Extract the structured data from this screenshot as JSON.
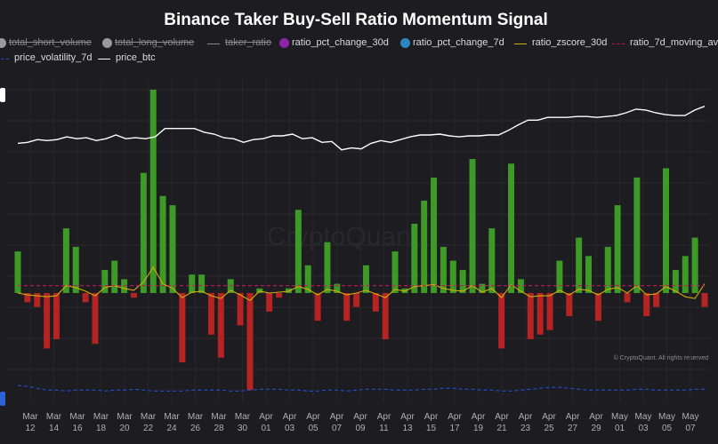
{
  "chart_data": {
    "type": "bar",
    "title": "Binance Taker Buy-Sell Ratio Momentum Signal",
    "x_tick_labels": [
      {
        "month": "Mar",
        "day": "12"
      },
      {
        "month": "Mar",
        "day": "14"
      },
      {
        "month": "Mar",
        "day": "16"
      },
      {
        "month": "Mar",
        "day": "18"
      },
      {
        "month": "Mar",
        "day": "20"
      },
      {
        "month": "Mar",
        "day": "22"
      },
      {
        "month": "Mar",
        "day": "24"
      },
      {
        "month": "Mar",
        "day": "26"
      },
      {
        "month": "Mar",
        "day": "28"
      },
      {
        "month": "Mar",
        "day": "30"
      },
      {
        "month": "Apr",
        "day": "01"
      },
      {
        "month": "Apr",
        "day": "03"
      },
      {
        "month": "Apr",
        "day": "05"
      },
      {
        "month": "Apr",
        "day": "07"
      },
      {
        "month": "Apr",
        "day": "09"
      },
      {
        "month": "Apr",
        "day": "11"
      },
      {
        "month": "Apr",
        "day": "13"
      },
      {
        "month": "Apr",
        "day": "15"
      },
      {
        "month": "Apr",
        "day": "17"
      },
      {
        "month": "Apr",
        "day": "19"
      },
      {
        "month": "Apr",
        "day": "21"
      },
      {
        "month": "Apr",
        "day": "23"
      },
      {
        "month": "Apr",
        "day": "25"
      },
      {
        "month": "Apr",
        "day": "27"
      },
      {
        "month": "Apr",
        "day": "29"
      },
      {
        "month": "May",
        "day": "01"
      },
      {
        "month": "May",
        "day": "03"
      },
      {
        "month": "May",
        "day": "05"
      },
      {
        "month": "May",
        "day": "07"
      }
    ],
    "ylim": [
      -1.1,
      2.2
    ],
    "grid": true,
    "legend_position": "top",
    "legend": [
      {
        "label": "total_short_volume",
        "marker": "dot",
        "color": "#9a9a9a",
        "hidden": true
      },
      {
        "label": "total_long_volume",
        "marker": "dot",
        "color": "#9a9a9a",
        "hidden": true
      },
      {
        "label": "taker_ratio",
        "marker": "line",
        "color": "#8a8a8a",
        "hidden": true
      },
      {
        "label": "ratio_pct_change_30d",
        "marker": "dot",
        "color": "#8e24aa",
        "hidden": false
      },
      {
        "label": "ratio_pct_change_7d",
        "marker": "dot",
        "color": "#2e86c1",
        "hidden": false
      },
      {
        "label": "ratio_zscore_30d",
        "marker": "line",
        "color": "#d4ac0d",
        "hidden": false
      },
      {
        "label": "ratio_7d_moving_av",
        "marker": "dashed",
        "color": "#c2185b",
        "hidden": false
      },
      {
        "label": "price_volatility_7d",
        "marker": "dashed",
        "color": "#1f4fd1",
        "hidden": false
      },
      {
        "label": "price_btc",
        "marker": "line",
        "color": "#ffffff",
        "hidden": false
      }
    ],
    "series": [
      {
        "name": "ratio_zscore_30d",
        "kind": "bar",
        "positive_color": "#3e9a26",
        "negative_color": "#b52323",
        "values": [
          0.45,
          -0.1,
          -0.15,
          -0.6,
          -0.5,
          0.7,
          0.5,
          -0.1,
          -0.55,
          0.25,
          0.35,
          0.15,
          -0.05,
          1.3,
          2.2,
          1.05,
          0.95,
          -0.75,
          0.2,
          0.2,
          -0.45,
          -0.7,
          0.15,
          -0.35,
          -1.05,
          0.05,
          -0.2,
          -0.05,
          0.05,
          0.9,
          0.3,
          -0.3,
          0.55,
          0.1,
          -0.3,
          -0.15,
          0.3,
          -0.2,
          -0.5,
          0.45,
          0.05,
          0.75,
          1.0,
          1.25,
          0.5,
          0.35,
          0.25,
          1.45,
          0.1,
          0.7,
          -0.6,
          1.4,
          0.15,
          -0.5,
          -0.45,
          -0.4,
          0.35,
          -0.25,
          0.6,
          0.4,
          -0.3,
          0.5,
          0.95,
          -0.1,
          1.25,
          -0.25,
          -0.15,
          1.35,
          0.25,
          0.4,
          0.6,
          -0.15
        ]
      },
      {
        "name": "ratio_zscore_30d",
        "kind": "line",
        "color": "#d4ac0d",
        "values": [
          0.0,
          -0.02,
          -0.03,
          -0.04,
          -0.03,
          0.08,
          0.06,
          0.02,
          -0.03,
          0.06,
          0.08,
          0.05,
          0.03,
          0.12,
          0.28,
          0.1,
          0.05,
          -0.05,
          0.01,
          0.02,
          -0.03,
          -0.06,
          0.03,
          -0.02,
          -0.08,
          0.02,
          0.0,
          0.01,
          0.02,
          0.07,
          0.04,
          -0.02,
          0.04,
          0.02,
          -0.02,
          0.0,
          0.03,
          -0.01,
          -0.05,
          0.04,
          0.02,
          0.07,
          0.08,
          0.09,
          0.05,
          0.03,
          0.02,
          0.08,
          0.01,
          0.05,
          -0.05,
          0.09,
          0.02,
          -0.04,
          -0.03,
          -0.03,
          0.03,
          -0.02,
          0.04,
          0.03,
          -0.02,
          0.04,
          0.06,
          0.0,
          0.08,
          -0.02,
          -0.01,
          0.07,
          0.02,
          -0.04,
          -0.06,
          0.1
        ]
      },
      {
        "name": "ratio_7d_moving_av",
        "kind": "dashed_line",
        "color": "#c2185b",
        "values": [
          0.08,
          0.08,
          0.08,
          0.08,
          0.08,
          0.08,
          0.08,
          0.08,
          0.08,
          0.08,
          0.08,
          0.08,
          0.08,
          0.08,
          0.08,
          0.08,
          0.08,
          0.08,
          0.08,
          0.08,
          0.08,
          0.08,
          0.08,
          0.08,
          0.08,
          0.08,
          0.08,
          0.08,
          0.08,
          0.08,
          0.08,
          0.08,
          0.08,
          0.08,
          0.08,
          0.08,
          0.08,
          0.08,
          0.08,
          0.08,
          0.08,
          0.08,
          0.08,
          0.08,
          0.08,
          0.08,
          0.08,
          0.08,
          0.08,
          0.08,
          0.08,
          0.08,
          0.08,
          0.08,
          0.08,
          0.08,
          0.08,
          0.08,
          0.08,
          0.08,
          0.08,
          0.08,
          0.08,
          0.08,
          0.08,
          0.08,
          0.08,
          0.08,
          0.08,
          0.08,
          0.08,
          0.08
        ]
      },
      {
        "name": "price_btc",
        "kind": "line",
        "color": "#ffffff",
        "values": [
          1.62,
          1.63,
          1.66,
          1.65,
          1.66,
          1.69,
          1.67,
          1.68,
          1.65,
          1.67,
          1.71,
          1.67,
          1.68,
          1.67,
          1.69,
          1.78,
          1.78,
          1.78,
          1.78,
          1.74,
          1.72,
          1.68,
          1.67,
          1.63,
          1.66,
          1.67,
          1.7,
          1.7,
          1.72,
          1.67,
          1.68,
          1.63,
          1.64,
          1.55,
          1.57,
          1.56,
          1.62,
          1.65,
          1.63,
          1.66,
          1.69,
          1.71,
          1.71,
          1.72,
          1.7,
          1.69,
          1.7,
          1.7,
          1.71,
          1.71,
          1.76,
          1.82,
          1.87,
          1.87,
          1.9,
          1.9,
          1.9,
          1.91,
          1.91,
          1.9,
          1.91,
          1.92,
          1.95,
          1.99,
          1.98,
          1.95,
          1.93,
          1.92,
          1.92,
          1.98,
          2.02
        ]
      },
      {
        "name": "price_volatility_7d",
        "kind": "dashed_line",
        "color": "#1f4fd1",
        "values": [
          -1.0,
          -1.01,
          -1.03,
          -1.05,
          -1.05,
          -1.06,
          -1.05,
          -1.05,
          -1.05,
          -1.06,
          -1.05,
          -1.05,
          -1.04,
          -1.05,
          -1.06,
          -1.06,
          -1.06,
          -1.06,
          -1.05,
          -1.05,
          -1.05,
          -1.05,
          -1.06,
          -1.06,
          -1.05,
          -1.04,
          -1.04,
          -1.04,
          -1.05,
          -1.05,
          -1.06,
          -1.06,
          -1.05,
          -1.05,
          -1.06,
          -1.05,
          -1.04,
          -1.04,
          -1.04,
          -1.05,
          -1.05,
          -1.05,
          -1.04,
          -1.04,
          -1.03,
          -1.03,
          -1.04,
          -1.04,
          -1.05,
          -1.05,
          -1.06,
          -1.06,
          -1.05,
          -1.04,
          -1.03,
          -1.02,
          -1.02,
          -1.03,
          -1.04,
          -1.05,
          -1.05,
          -1.05,
          -1.05,
          -1.05,
          -1.04,
          -1.04,
          -1.05,
          -1.05,
          -1.05,
          -1.05,
          -1.04,
          -1.04
        ]
      }
    ]
  },
  "watermark": "CryptoQuant",
  "credit": "© CryptoQuant. All rights reserved"
}
